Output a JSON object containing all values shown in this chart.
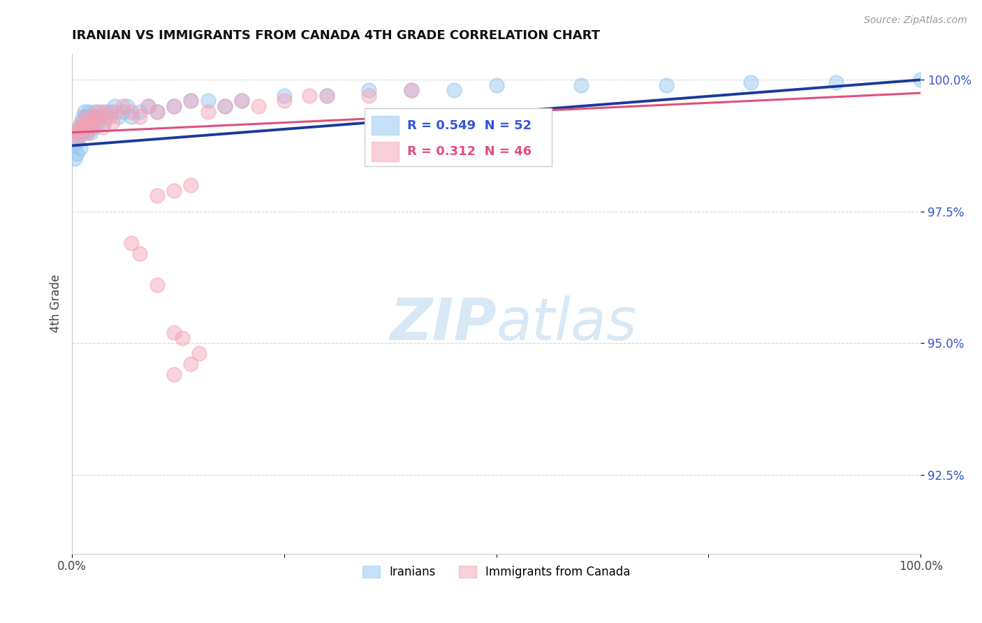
{
  "title": "IRANIAN VS IMMIGRANTS FROM CANADA 4TH GRADE CORRELATION CHART",
  "source_text": "Source: ZipAtlas.com",
  "ylabel": "4th Grade",
  "xlim": [
    0.0,
    1.0
  ],
  "ylim": [
    0.91,
    1.005
  ],
  "yticks": [
    0.925,
    0.95,
    0.975,
    1.0
  ],
  "ytick_labels": [
    "92.5%",
    "95.0%",
    "97.5%",
    "100.0%"
  ],
  "xticks": [
    0.0,
    0.25,
    0.5,
    0.75,
    1.0
  ],
  "xtick_labels": [
    "0.0%",
    "",
    "",
    "",
    "100.0%"
  ],
  "legend_r1": "R = 0.549",
  "legend_n1": "N = 52",
  "legend_r2": "R = 0.312",
  "legend_n2": "N = 46",
  "color_iranians": "#8EC4F0",
  "color_canada": "#F5A0B5",
  "color_line1": "#1A3A9A",
  "color_line2": "#E0507A",
  "color_legend_r_blue": "#3355DD",
  "color_legend_r_pink": "#E0507A",
  "watermark_color": "#D8E8F5",
  "iranians_x": [
    0.003,
    0.005,
    0.006,
    0.007,
    0.008,
    0.009,
    0.01,
    0.011,
    0.012,
    0.013,
    0.014,
    0.015,
    0.016,
    0.017,
    0.018,
    0.019,
    0.02,
    0.021,
    0.022,
    0.023,
    0.025,
    0.027,
    0.03,
    0.032,
    0.035,
    0.038,
    0.04,
    0.045,
    0.05,
    0.055,
    0.06,
    0.065,
    0.07,
    0.08,
    0.09,
    0.1,
    0.12,
    0.14,
    0.16,
    0.18,
    0.2,
    0.25,
    0.3,
    0.35,
    0.4,
    0.45,
    0.5,
    0.6,
    0.7,
    0.8,
    0.9,
    1.0
  ],
  "iranians_y": [
    0.985,
    0.988,
    0.986,
    0.99,
    0.989,
    0.991,
    0.987,
    0.992,
    0.99,
    0.993,
    0.991,
    0.994,
    0.992,
    0.99,
    0.993,
    0.991,
    0.994,
    0.992,
    0.99,
    0.993,
    0.991,
    0.994,
    0.992,
    0.993,
    0.994,
    0.992,
    0.993,
    0.994,
    0.995,
    0.993,
    0.994,
    0.995,
    0.993,
    0.994,
    0.995,
    0.994,
    0.995,
    0.996,
    0.996,
    0.995,
    0.996,
    0.997,
    0.997,
    0.998,
    0.998,
    0.998,
    0.999,
    0.999,
    0.999,
    0.9995,
    0.9995,
    1.0
  ],
  "canada_x": [
    0.004,
    0.006,
    0.008,
    0.01,
    0.012,
    0.014,
    0.016,
    0.018,
    0.02,
    0.022,
    0.025,
    0.028,
    0.03,
    0.033,
    0.036,
    0.04,
    0.044,
    0.048,
    0.052,
    0.06,
    0.07,
    0.08,
    0.09,
    0.1,
    0.12,
    0.14,
    0.16,
    0.18,
    0.2,
    0.22,
    0.25,
    0.28,
    0.3,
    0.35,
    0.4,
    0.1,
    0.12,
    0.14,
    0.07,
    0.08,
    0.1,
    0.12,
    0.14,
    0.15,
    0.12,
    0.13
  ],
  "canada_y": [
    0.99,
    0.989,
    0.991,
    0.99,
    0.992,
    0.991,
    0.993,
    0.99,
    0.992,
    0.991,
    0.993,
    0.992,
    0.994,
    0.993,
    0.991,
    0.994,
    0.993,
    0.992,
    0.994,
    0.995,
    0.994,
    0.993,
    0.995,
    0.994,
    0.995,
    0.996,
    0.994,
    0.995,
    0.996,
    0.995,
    0.996,
    0.997,
    0.997,
    0.997,
    0.998,
    0.978,
    0.979,
    0.98,
    0.969,
    0.967,
    0.961,
    0.944,
    0.946,
    0.948,
    0.952,
    0.951
  ],
  "line1_x0": 0.0,
  "line1_y0": 0.9875,
  "line1_x1": 1.0,
  "line1_y1": 1.0,
  "line2_x0": 0.0,
  "line2_y0": 0.99,
  "line2_x1": 1.0,
  "line2_y1": 0.9975
}
